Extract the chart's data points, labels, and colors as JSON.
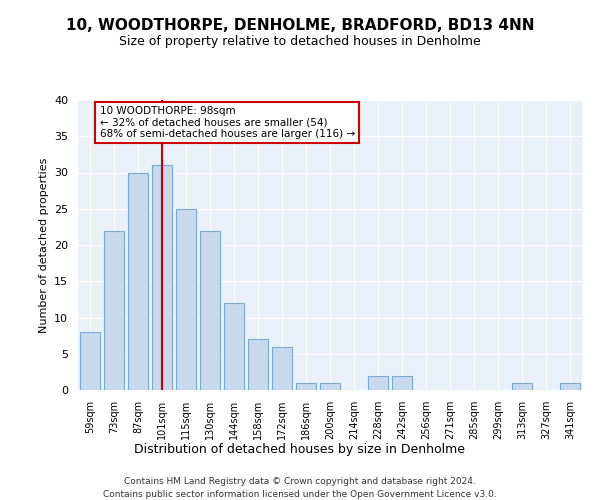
{
  "title": "10, WOODTHORPE, DENHOLME, BRADFORD, BD13 4NN",
  "subtitle": "Size of property relative to detached houses in Denholme",
  "xlabel": "Distribution of detached houses by size in Denholme",
  "ylabel": "Number of detached properties",
  "categories": [
    "59sqm",
    "73sqm",
    "87sqm",
    "101sqm",
    "115sqm",
    "130sqm",
    "144sqm",
    "158sqm",
    "172sqm",
    "186sqm",
    "200sqm",
    "214sqm",
    "228sqm",
    "242sqm",
    "256sqm",
    "271sqm",
    "285sqm",
    "299sqm",
    "313sqm",
    "327sqm",
    "341sqm"
  ],
  "values": [
    8,
    22,
    30,
    31,
    25,
    22,
    12,
    7,
    6,
    1,
    1,
    0,
    2,
    2,
    0,
    0,
    0,
    0,
    1,
    0,
    1
  ],
  "bar_color": "#c9d9ed",
  "bar_edge_color": "#7aaacf",
  "reference_line_x": 3,
  "reference_line_label": "10 WOODTHORPE: 98sqm",
  "annotation_line1": "← 32% of detached houses are smaller (54)",
  "annotation_line2": "68% of semi-detached houses are larger (116) →",
  "annotation_box_color": "#ffffff",
  "annotation_box_edge": "#cc0000",
  "ref_line_color": "#cc0000",
  "ylim": [
    0,
    40
  ],
  "yticks": [
    0,
    5,
    10,
    15,
    20,
    25,
    30,
    35,
    40
  ],
  "background_color": "#eaf0f8",
  "footer1": "Contains HM Land Registry data © Crown copyright and database right 2024.",
  "footer2": "Contains public sector information licensed under the Open Government Licence v3.0."
}
